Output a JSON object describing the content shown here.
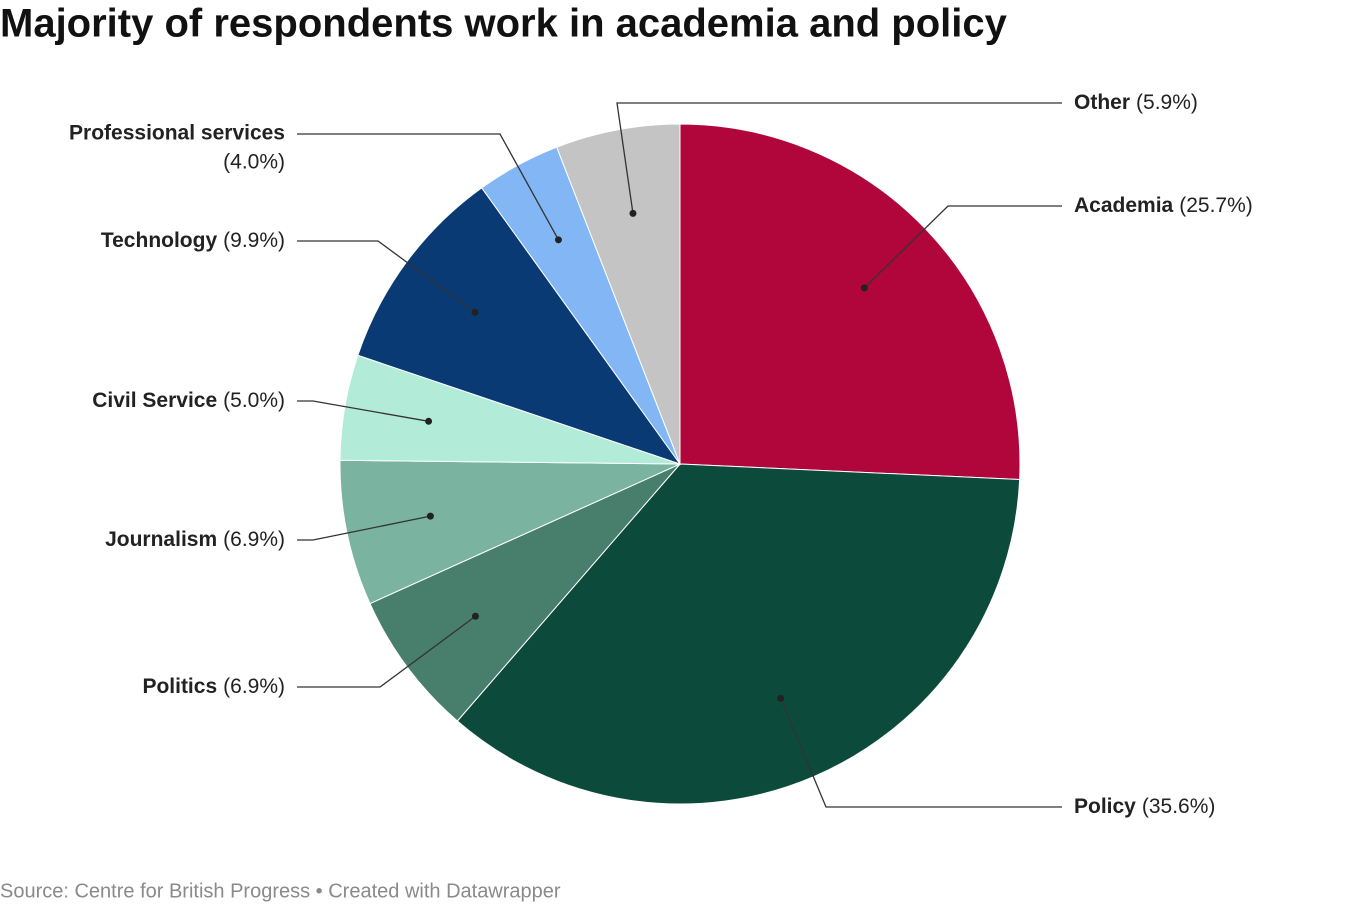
{
  "chart_data": {
    "type": "pie",
    "title": "Majority of respondents work in academia and policy",
    "categories": [
      "Academia",
      "Policy",
      "Politics",
      "Journalism",
      "Civil Service",
      "Technology",
      "Professional services",
      "Other"
    ],
    "values": [
      25.7,
      35.6,
      6.9,
      6.9,
      5.0,
      9.9,
      4.0,
      5.9
    ],
    "value_labels": [
      "(25.7%)",
      "(35.6%)",
      "(6.9%)",
      "(6.9%)",
      "(5.0%)",
      "(9.9%)",
      "(4.0%)",
      "(5.9%)"
    ],
    "colors": [
      "#b0063c",
      "#0c4a3c",
      "#477e6c",
      "#7ab3a0",
      "#b2ecd9",
      "#0a3a74",
      "#82b6f5",
      "#c4c4c4"
    ],
    "source": "Source: Centre for British Progress • Created with Datawrapper"
  }
}
